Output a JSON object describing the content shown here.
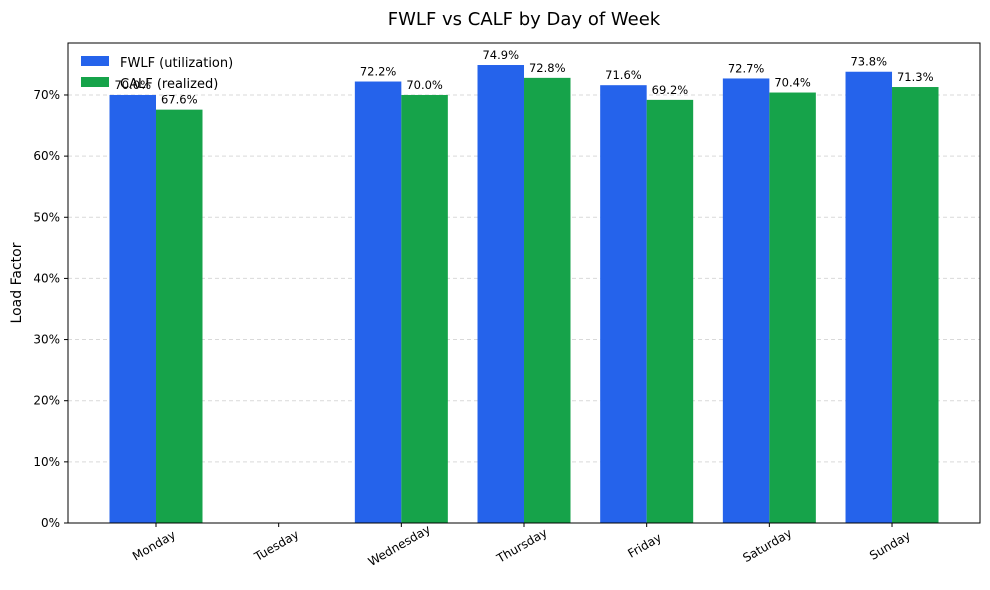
{
  "chart_data": {
    "type": "bar",
    "title": "FWLF vs CALF by Day of Week",
    "xlabel": "",
    "ylabel": "Load Factor",
    "ylim": [
      0,
      0.785
    ],
    "yticks": [
      0,
      0.1,
      0.2,
      0.3,
      0.4,
      0.5,
      0.6,
      0.7
    ],
    "ytick_labels": [
      "0%",
      "10%",
      "20%",
      "30%",
      "40%",
      "50%",
      "60%",
      "70%"
    ],
    "grid": "horizontal-dashed",
    "legend_position": "top-left",
    "categories": [
      "Monday",
      "Tuesday",
      "Wednesday",
      "Thursday",
      "Friday",
      "Saturday",
      "Sunday"
    ],
    "series": [
      {
        "name": "FWLF (utilization)",
        "color": "#2563eb",
        "values": [
          0.7,
          null,
          0.722,
          0.749,
          0.716,
          0.727,
          0.738
        ],
        "labels": [
          "70.0%",
          "",
          "72.2%",
          "74.9%",
          "71.6%",
          "72.7%",
          "73.8%"
        ]
      },
      {
        "name": "CALF (realized)",
        "color": "#16a34a",
        "values": [
          0.676,
          null,
          0.7,
          0.728,
          0.692,
          0.704,
          0.713
        ],
        "labels": [
          "67.6%",
          "",
          "70.0%",
          "72.8%",
          "69.2%",
          "70.4%",
          "71.3%"
        ]
      }
    ]
  }
}
